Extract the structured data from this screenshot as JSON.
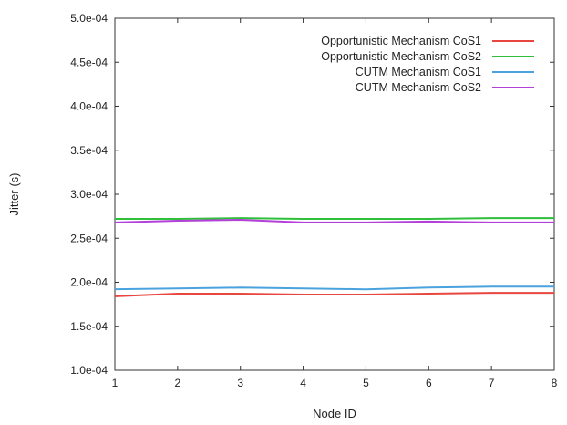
{
  "chart_data": {
    "type": "line",
    "xlabel": "Node ID",
    "ylabel": "Jitter (s)",
    "x": [
      1,
      2,
      3,
      4,
      5,
      6,
      7,
      8
    ],
    "xlim": [
      1,
      8
    ],
    "ylim": [
      0.0001,
      0.0005
    ],
    "x_ticks": [
      1,
      2,
      3,
      4,
      5,
      6,
      7,
      8
    ],
    "x_tick_labels": [
      "1",
      "2",
      "3",
      "4",
      "5",
      "6",
      "7",
      "8"
    ],
    "y_ticks": [
      0.0001,
      0.00015,
      0.0002,
      0.00025,
      0.0003,
      0.00035,
      0.0004,
      0.00045,
      0.0005
    ],
    "y_tick_labels": [
      "1.0e-04",
      "1.5e-04",
      "2.0e-04",
      "2.5e-04",
      "3.0e-04",
      "3.5e-04",
      "4.0e-04",
      "4.5e-04",
      "5.0e-04"
    ],
    "grid": false,
    "legend_position": "top-right",
    "series": [
      {
        "name": "Opportunistic Mechanism CoS1",
        "color": "#e8473f",
        "values": [
          0.000184,
          0.000187,
          0.000187,
          0.000186,
          0.000186,
          0.000187,
          0.000188,
          0.000188
        ]
      },
      {
        "name": "Opportunistic Mechanism CoS2",
        "color": "#2fbf3a",
        "values": [
          0.000272,
          0.000272,
          0.000273,
          0.000272,
          0.000272,
          0.000272,
          0.000273,
          0.000273
        ]
      },
      {
        "name": "CUTM Mechanism CoS1",
        "color": "#4aa3df",
        "values": [
          0.000192,
          0.000193,
          0.000194,
          0.000193,
          0.000192,
          0.000194,
          0.000195,
          0.000195
        ]
      },
      {
        "name": "CUTM Mechanism CoS2",
        "color": "#b340d8",
        "values": [
          0.000268,
          0.00027,
          0.000271,
          0.000268,
          0.000268,
          0.000269,
          0.000268,
          0.000268
        ]
      }
    ]
  }
}
